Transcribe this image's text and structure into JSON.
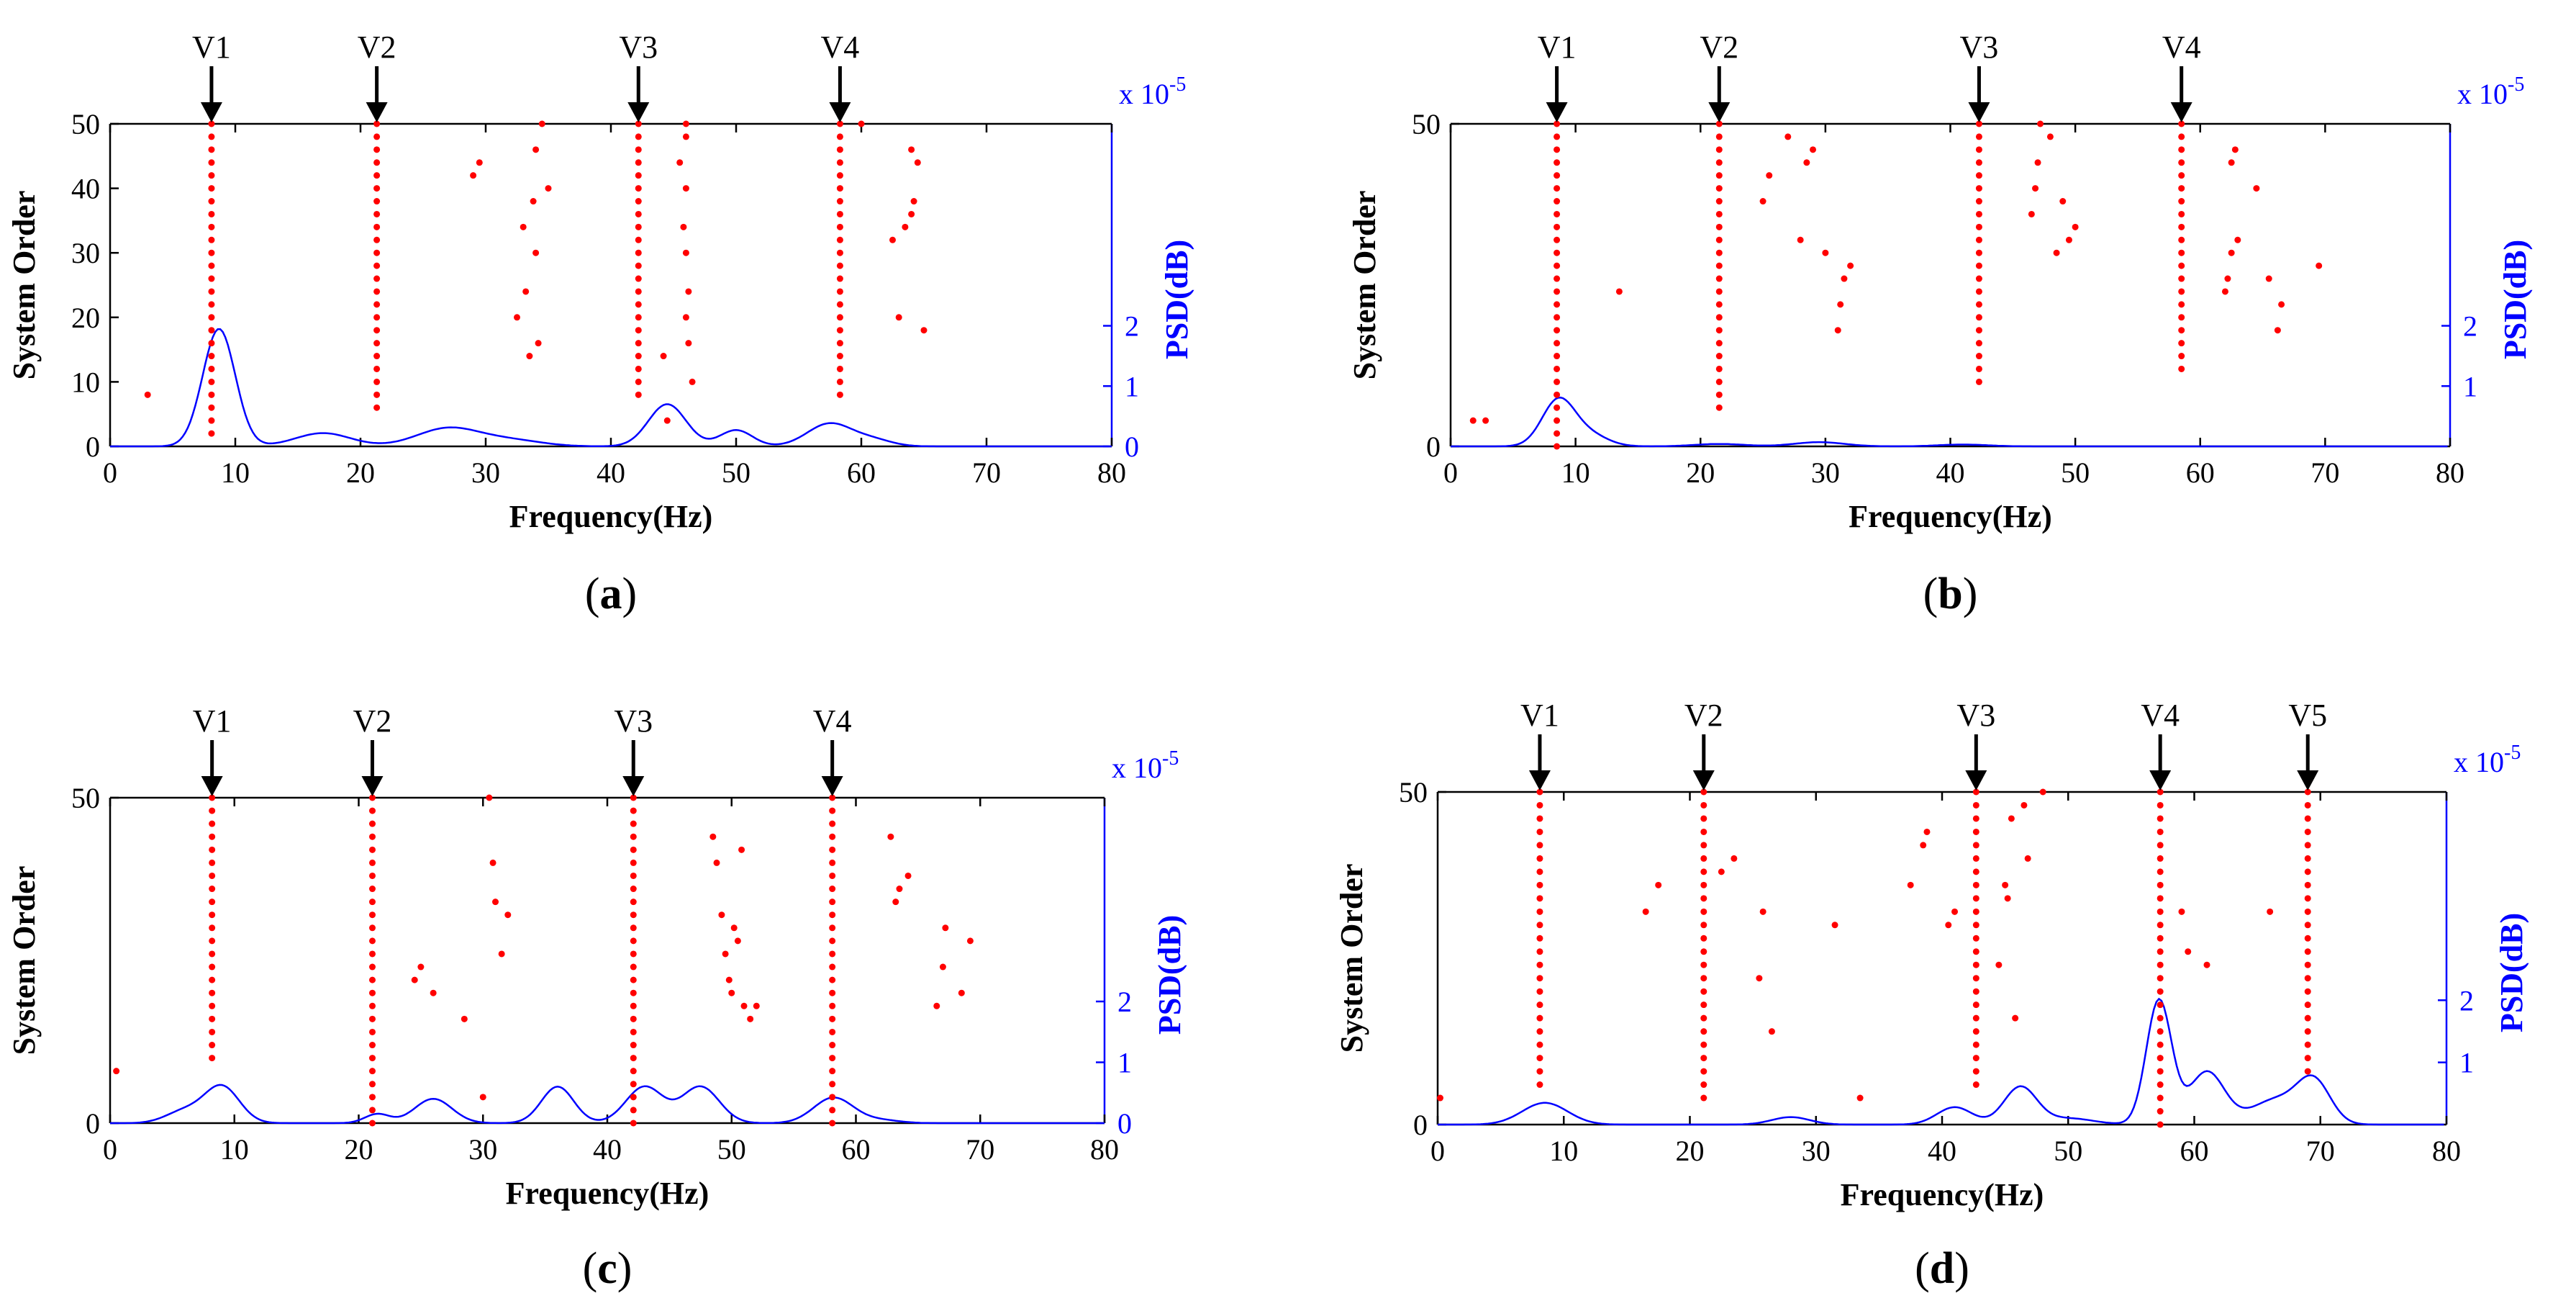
{
  "figure": {
    "shared_text": {
      "xlabel": "Frequency(Hz)",
      "ylabel": "System Order",
      "right_ylabel": "PSD(dB)",
      "psd_scale": "x 10",
      "psd_scale_exp": "-5"
    }
  },
  "chart_data": [
    {
      "panel": "a",
      "caption": "a",
      "type": "scatter",
      "xlabel": "Frequency(Hz)",
      "ylabel": "System Order",
      "right_ylabel": "PSD(dB)",
      "xlim": [
        0,
        80
      ],
      "ylim": [
        0,
        50
      ],
      "xticks": [
        0,
        10,
        20,
        30,
        40,
        50,
        60,
        70,
        80
      ],
      "yticks": [
        0,
        10,
        20,
        30,
        40,
        50
      ],
      "psd_ticks": [
        0,
        1,
        2
      ],
      "psd_lim": [
        0,
        5.35
      ],
      "markers": [
        {
          "label": "V1",
          "x": 8.1
        },
        {
          "label": "V2",
          "x": 21.3
        },
        {
          "label": "V3",
          "x": 42.2
        },
        {
          "label": "V4",
          "x": 58.3
        }
      ],
      "stable_columns": [
        {
          "x": 8.1,
          "from": 2,
          "to": 50
        },
        {
          "x": 21.3,
          "from": 6,
          "to": 50
        },
        {
          "x": 42.2,
          "from": 8,
          "to": 50
        },
        {
          "x": 58.3,
          "from": 8,
          "to": 50
        }
      ],
      "scatter_points": [
        [
          3,
          8
        ],
        [
          29,
          42
        ],
        [
          29.5,
          44
        ],
        [
          32.5,
          20
        ],
        [
          33,
          34
        ],
        [
          33.2,
          24
        ],
        [
          33.5,
          14
        ],
        [
          33.8,
          38
        ],
        [
          34,
          30
        ],
        [
          34,
          46
        ],
        [
          34.2,
          16
        ],
        [
          34.5,
          50
        ],
        [
          35,
          40
        ],
        [
          44.2,
          14
        ],
        [
          44.5,
          4
        ],
        [
          45.5,
          44
        ],
        [
          45.8,
          34
        ],
        [
          46,
          20
        ],
        [
          46,
          30
        ],
        [
          46,
          40
        ],
        [
          46,
          48
        ],
        [
          46,
          50
        ],
        [
          46.2,
          24
        ],
        [
          46.2,
          16
        ],
        [
          46.5,
          10
        ],
        [
          60,
          50
        ],
        [
          62.5,
          32
        ],
        [
          63,
          20
        ],
        [
          63.5,
          34
        ],
        [
          64,
          36
        ],
        [
          64,
          46
        ],
        [
          64.2,
          38
        ],
        [
          64.5,
          44
        ],
        [
          65,
          18
        ]
      ],
      "psd_peaks": [
        [
          8.7,
          1.95,
          1.3
        ],
        [
          17,
          0.22,
          2.2
        ],
        [
          27,
          0.3,
          2.5
        ],
        [
          32,
          0.1,
          2.5
        ],
        [
          44.5,
          0.7,
          1.5
        ],
        [
          50,
          0.27,
          1.3
        ],
        [
          57.5,
          0.38,
          1.8
        ],
        [
          61,
          0.1,
          1.5
        ]
      ]
    },
    {
      "panel": "b",
      "caption": "b",
      "type": "scatter",
      "xlabel": "Frequency(Hz)",
      "ylabel": "System Order",
      "right_ylabel": "PSD(dB)",
      "xlim": [
        0,
        80
      ],
      "ylim": [
        0,
        50
      ],
      "xticks": [
        0,
        10,
        20,
        30,
        40,
        50,
        60,
        70,
        80
      ],
      "yticks": [
        0,
        50
      ],
      "psd_ticks": [
        1,
        2
      ],
      "psd_lim": [
        0,
        5.35
      ],
      "markers": [
        {
          "label": "V1",
          "x": 8.5
        },
        {
          "label": "V2",
          "x": 21.5
        },
        {
          "label": "V3",
          "x": 42.3
        },
        {
          "label": "V4",
          "x": 58.5
        }
      ],
      "stable_columns": [
        {
          "x": 8.5,
          "from": 0,
          "to": 50
        },
        {
          "x": 21.5,
          "from": 6,
          "to": 50
        },
        {
          "x": 42.3,
          "from": 10,
          "to": 50
        },
        {
          "x": 58.5,
          "from": 12,
          "to": 50
        }
      ],
      "scatter_points": [
        [
          1.8,
          4
        ],
        [
          2.8,
          4
        ],
        [
          13.5,
          24
        ],
        [
          25,
          38
        ],
        [
          25.5,
          42
        ],
        [
          27,
          48
        ],
        [
          28,
          32
        ],
        [
          28.5,
          44
        ],
        [
          29,
          46
        ],
        [
          30,
          30
        ],
        [
          31,
          18
        ],
        [
          31.2,
          22
        ],
        [
          31.5,
          26
        ],
        [
          32,
          28
        ],
        [
          46.5,
          36
        ],
        [
          46.8,
          40
        ],
        [
          47,
          44
        ],
        [
          47.2,
          50
        ],
        [
          48,
          48
        ],
        [
          48.5,
          30
        ],
        [
          49,
          38
        ],
        [
          49.5,
          32
        ],
        [
          50,
          34
        ],
        [
          62,
          24
        ],
        [
          62.2,
          26
        ],
        [
          62.5,
          30
        ],
        [
          62.5,
          44
        ],
        [
          62.8,
          46
        ],
        [
          63,
          32
        ],
        [
          64.5,
          40
        ],
        [
          65.5,
          26
        ],
        [
          66.2,
          18
        ],
        [
          66.5,
          22
        ],
        [
          69.5,
          28
        ]
      ],
      "psd_peaks": [
        [
          8.6,
          0.75,
          1.3
        ],
        [
          11,
          0.2,
          1.5
        ],
        [
          21.5,
          0.04,
          2.0
        ],
        [
          29.5,
          0.07,
          2.0
        ],
        [
          41,
          0.03,
          2.0
        ]
      ]
    },
    {
      "panel": "c",
      "caption": "c",
      "type": "scatter",
      "xlabel": "Frequency(Hz)",
      "ylabel": "System Order",
      "right_ylabel": "PSD(dB)",
      "xlim": [
        0,
        80
      ],
      "ylim": [
        0,
        50
      ],
      "xticks": [
        0,
        10,
        20,
        30,
        40,
        50,
        60,
        70,
        80
      ],
      "yticks": [
        0,
        50
      ],
      "psd_ticks": [
        0,
        1,
        2
      ],
      "psd_lim": [
        0,
        5.35
      ],
      "markers": [
        {
          "label": "V1",
          "x": 8.2
        },
        {
          "label": "V2",
          "x": 21.1
        },
        {
          "label": "V3",
          "x": 42.1
        },
        {
          "label": "V4",
          "x": 58.1
        }
      ],
      "stable_columns": [
        {
          "x": 8.2,
          "from": 10,
          "to": 50
        },
        {
          "x": 21.1,
          "from": 0,
          "to": 50
        },
        {
          "x": 42.1,
          "from": 0,
          "to": 50
        },
        {
          "x": 58.1,
          "from": 0,
          "to": 50
        }
      ],
      "scatter_points": [
        [
          0.5,
          8
        ],
        [
          24.5,
          22
        ],
        [
          25,
          24
        ],
        [
          26,
          20
        ],
        [
          28.5,
          16
        ],
        [
          30,
          4
        ],
        [
          30.5,
          50
        ],
        [
          30.8,
          40
        ],
        [
          31,
          34
        ],
        [
          31.5,
          26
        ],
        [
          32,
          32
        ],
        [
          48.5,
          44
        ],
        [
          48.8,
          40
        ],
        [
          49.2,
          32
        ],
        [
          49.5,
          26
        ],
        [
          49.8,
          22
        ],
        [
          50,
          20
        ],
        [
          50.2,
          30
        ],
        [
          50.5,
          28
        ],
        [
          50.8,
          42
        ],
        [
          51,
          18
        ],
        [
          51.5,
          16
        ],
        [
          52,
          18
        ],
        [
          62.8,
          44
        ],
        [
          63.2,
          34
        ],
        [
          63.5,
          36
        ],
        [
          64.2,
          38
        ],
        [
          66.5,
          18
        ],
        [
          67,
          24
        ],
        [
          67.2,
          30
        ],
        [
          68.5,
          20
        ],
        [
          69.2,
          28
        ]
      ],
      "psd_peaks": [
        [
          9,
          0.6,
          1.4
        ],
        [
          6,
          0.2,
          1.5
        ],
        [
          21.5,
          0.15,
          1.0
        ],
        [
          26,
          0.4,
          1.5
        ],
        [
          36,
          0.6,
          1.3
        ],
        [
          43,
          0.6,
          1.5
        ],
        [
          47.5,
          0.6,
          1.5
        ],
        [
          58.2,
          0.42,
          1.6
        ],
        [
          62,
          0.05,
          1.5
        ]
      ]
    },
    {
      "panel": "d",
      "caption": "d",
      "type": "scatter",
      "xlabel": "Frequency(Hz)",
      "ylabel": "System Order",
      "right_ylabel": "PSD(dB)",
      "xlim": [
        0,
        80
      ],
      "ylim": [
        0,
        50
      ],
      "xticks": [
        0,
        10,
        20,
        30,
        40,
        50,
        60,
        70,
        80
      ],
      "yticks": [
        0,
        50
      ],
      "psd_ticks": [
        1,
        2
      ],
      "psd_lim": [
        0,
        5.35
      ],
      "markers": [
        {
          "label": "V1",
          "x": 8.1
        },
        {
          "label": "V2",
          "x": 21.1
        },
        {
          "label": "V3",
          "x": 42.7
        },
        {
          "label": "V4",
          "x": 57.3
        },
        {
          "label": "V5",
          "x": 69.0
        }
      ],
      "stable_columns": [
        {
          "x": 8.1,
          "from": 6,
          "to": 50
        },
        {
          "x": 21.1,
          "from": 4,
          "to": 50
        },
        {
          "x": 42.7,
          "from": 6,
          "to": 50
        },
        {
          "x": 57.3,
          "from": 0,
          "to": 50
        },
        {
          "x": 69.0,
          "from": 8,
          "to": 50
        }
      ],
      "scatter_points": [
        [
          0.2,
          4
        ],
        [
          16.5,
          32
        ],
        [
          17.5,
          36
        ],
        [
          22.5,
          38
        ],
        [
          23.5,
          40
        ],
        [
          25.5,
          22
        ],
        [
          25.8,
          32
        ],
        [
          26.5,
          14
        ],
        [
          31.5,
          30
        ],
        [
          33.5,
          4
        ],
        [
          37.5,
          36
        ],
        [
          38.5,
          42
        ],
        [
          38.8,
          44
        ],
        [
          40.5,
          30
        ],
        [
          41,
          32
        ],
        [
          44.5,
          24
        ],
        [
          45,
          36
        ],
        [
          45.2,
          34
        ],
        [
          45.5,
          46
        ],
        [
          45.8,
          16
        ],
        [
          46.5,
          48
        ],
        [
          46.8,
          40
        ],
        [
          48,
          50
        ],
        [
          59,
          32
        ],
        [
          59.5,
          26
        ],
        [
          61,
          24
        ],
        [
          66,
          32
        ]
      ],
      "psd_peaks": [
        [
          8.5,
          0.35,
          1.8
        ],
        [
          28,
          0.12,
          1.5
        ],
        [
          41,
          0.28,
          1.4
        ],
        [
          46.2,
          0.6,
          1.3
        ],
        [
          50,
          0.1,
          2.0
        ],
        [
          57.2,
          2.0,
          1.0
        ],
        [
          61,
          0.85,
          1.4
        ],
        [
          66.5,
          0.4,
          2.0
        ],
        [
          69.5,
          0.65,
          1.3
        ]
      ]
    }
  ]
}
